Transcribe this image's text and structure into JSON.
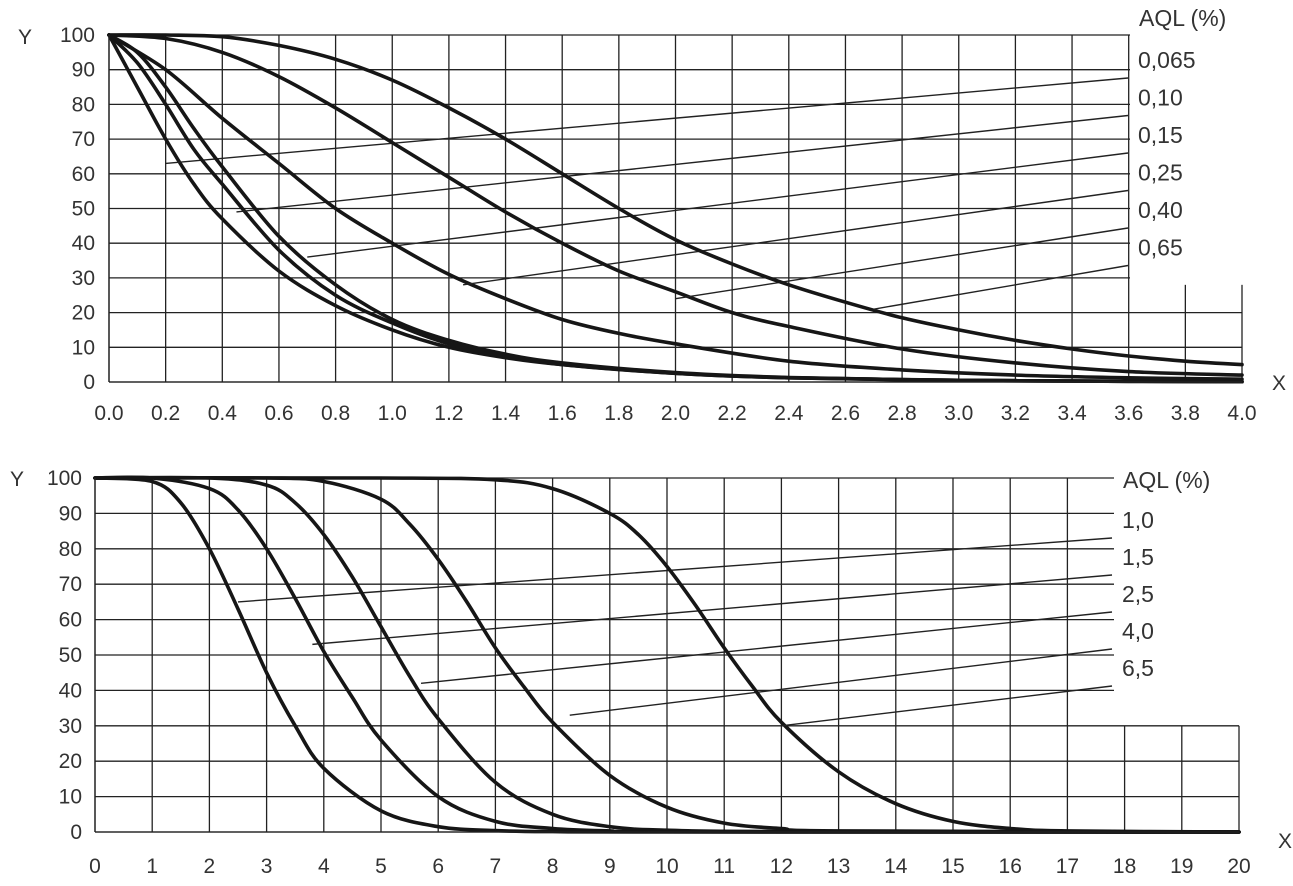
{
  "chart_data": [
    {
      "type": "line",
      "xlabel": "X",
      "ylabel": "Y",
      "xlim": [
        0,
        4.0
      ],
      "ylim": [
        0,
        100
      ],
      "x_ticks": [
        "0.0",
        "0.2",
        "0.4",
        "0.6",
        "0.8",
        "1.0",
        "1.2",
        "1.4",
        "1.6",
        "1.8",
        "2.0",
        "2.2",
        "2.4",
        "2.6",
        "2.8",
        "3.0",
        "3.2",
        "3.4",
        "3.6",
        "3.8",
        "4.0"
      ],
      "y_ticks": [
        "0",
        "10",
        "20",
        "30",
        "40",
        "50",
        "60",
        "70",
        "80",
        "90",
        "100"
      ],
      "legend_title": "AQL (%)",
      "grid": true,
      "series": [
        {
          "name": "0,065",
          "x": [
            0,
            0.1,
            0.2,
            0.3,
            0.4,
            0.6,
            0.8,
            1.0,
            1.2,
            1.4,
            1.6,
            2.0,
            2.4,
            3.0,
            3.6,
            4.0
          ],
          "values": [
            100,
            85,
            70,
            57,
            47,
            32,
            22,
            15,
            10,
            7,
            5,
            2.5,
            1.2,
            0.5,
            0.2,
            0.1
          ],
          "label_at": [
            0.2,
            63
          ]
        },
        {
          "name": "0,10",
          "x": [
            0,
            0.1,
            0.2,
            0.3,
            0.4,
            0.6,
            0.8,
            1.0,
            1.2,
            1.4,
            1.6,
            2.0,
            2.4,
            3.0,
            3.6,
            4.0
          ],
          "values": [
            100,
            92,
            80,
            67,
            57,
            38,
            25,
            17,
            11,
            7.5,
            5,
            2.5,
            1.2,
            0.5,
            0.2,
            0.1
          ],
          "label_at": [
            0.45,
            49
          ]
        },
        {
          "name": "0,15",
          "x": [
            0,
            0.1,
            0.2,
            0.3,
            0.4,
            0.6,
            0.8,
            1.0,
            1.2,
            1.4,
            1.6,
            2.0,
            2.4,
            3.0,
            3.6,
            4.0
          ],
          "values": [
            100,
            95,
            85,
            73,
            62,
            42,
            28,
            18,
            12,
            8,
            5.5,
            2.7,
            1.3,
            0.5,
            0.2,
            0.1
          ],
          "label_at": [
            0.7,
            36
          ]
        },
        {
          "name": "0,25",
          "x": [
            0,
            0.2,
            0.4,
            0.6,
            0.8,
            1.0,
            1.2,
            1.4,
            1.6,
            1.8,
            2.0,
            2.4,
            2.8,
            3.2,
            3.6,
            4.0
          ],
          "values": [
            100,
            90,
            76,
            63,
            50,
            40,
            31,
            24,
            18,
            14,
            11,
            6,
            3.5,
            2,
            1.2,
            0.8
          ],
          "label_at": [
            1.25,
            28
          ]
        },
        {
          "name": "0,40",
          "x": [
            0,
            0.2,
            0.4,
            0.6,
            0.8,
            1.0,
            1.2,
            1.4,
            1.6,
            1.8,
            2.0,
            2.2,
            2.4,
            2.8,
            3.2,
            3.6,
            4.0
          ],
          "values": [
            100,
            99,
            95,
            88,
            79,
            69,
            59,
            49,
            40,
            32,
            26,
            20,
            16,
            9.5,
            5.5,
            3,
            2
          ],
          "label_at": [
            2.0,
            24
          ]
        },
        {
          "name": "0,65",
          "x": [
            0,
            0.2,
            0.4,
            0.6,
            0.8,
            1.0,
            1.2,
            1.4,
            1.6,
            1.8,
            2.0,
            2.2,
            2.4,
            2.6,
            2.8,
            3.0,
            3.2,
            3.4,
            3.6,
            3.8,
            4.0
          ],
          "values": [
            100,
            100,
            99.5,
            97,
            93,
            87,
            79,
            70,
            60,
            50,
            41,
            34,
            28,
            23,
            18.5,
            15,
            12,
            9.5,
            7.5,
            6,
            5
          ],
          "label_at": [
            2.7,
            21
          ]
        }
      ]
    },
    {
      "type": "line",
      "xlabel": "X",
      "ylabel": "Y",
      "xlim": [
        0,
        20
      ],
      "ylim": [
        0,
        100
      ],
      "x_ticks": [
        "0",
        "1",
        "2",
        "3",
        "4",
        "5",
        "6",
        "7",
        "8",
        "9",
        "10",
        "11",
        "12",
        "13",
        "14",
        "15",
        "16",
        "17",
        "18",
        "19",
        "20"
      ],
      "y_ticks": [
        "0",
        "10",
        "20",
        "30",
        "40",
        "50",
        "60",
        "70",
        "80",
        "90",
        "100"
      ],
      "legend_title": "AQL (%)",
      "grid": true,
      "series": [
        {
          "name": "1,0",
          "x": [
            0,
            1,
            1.5,
            2,
            2.5,
            3,
            3.5,
            4,
            5,
            6,
            7,
            8,
            10,
            20
          ],
          "values": [
            100,
            99,
            93,
            80,
            63,
            45,
            30,
            18,
            6,
            1.5,
            0.4,
            0.1,
            0,
            0
          ],
          "label_at": [
            2.5,
            65
          ]
        },
        {
          "name": "1,5",
          "x": [
            0,
            1,
            2,
            2.5,
            3,
            3.5,
            4,
            4.5,
            5,
            6,
            7,
            8,
            9,
            10,
            20
          ],
          "values": [
            100,
            100,
            97,
            91,
            80,
            66,
            51,
            38,
            26,
            10,
            3,
            1,
            0.3,
            0.1,
            0
          ],
          "label_at": [
            3.8,
            53
          ]
        },
        {
          "name": "2,5",
          "x": [
            0,
            2,
            3,
            3.5,
            4,
            4.5,
            5,
            5.5,
            6,
            7,
            8,
            9,
            10,
            12,
            20
          ],
          "values": [
            100,
            100,
            98,
            93,
            84,
            72,
            58,
            44,
            32,
            14,
            5,
            1.5,
            0.5,
            0.1,
            0
          ],
          "label_at": [
            5.7,
            42
          ]
        },
        {
          "name": "4,0",
          "x": [
            0,
            3,
            4,
            5,
            5.5,
            6,
            6.5,
            7,
            7.5,
            8,
            9,
            10,
            11,
            12,
            13,
            20
          ],
          "values": [
            100,
            100,
            99,
            94,
            87,
            77,
            65,
            52,
            41,
            31,
            16,
            7,
            2.5,
            1,
            0.3,
            0
          ],
          "label_at": [
            8.3,
            33
          ]
        },
        {
          "name": "6,5",
          "x": [
            0,
            5,
            7,
            8,
            9,
            9.5,
            10,
            10.5,
            11,
            11.5,
            12,
            13,
            14,
            15,
            16,
            17,
            20
          ],
          "values": [
            100,
            100,
            99.5,
            97,
            90,
            84,
            75,
            64,
            52,
            41,
            31,
            17,
            8,
            3,
            1,
            0.3,
            0
          ],
          "label_at": [
            12,
            30
          ]
        }
      ]
    }
  ]
}
